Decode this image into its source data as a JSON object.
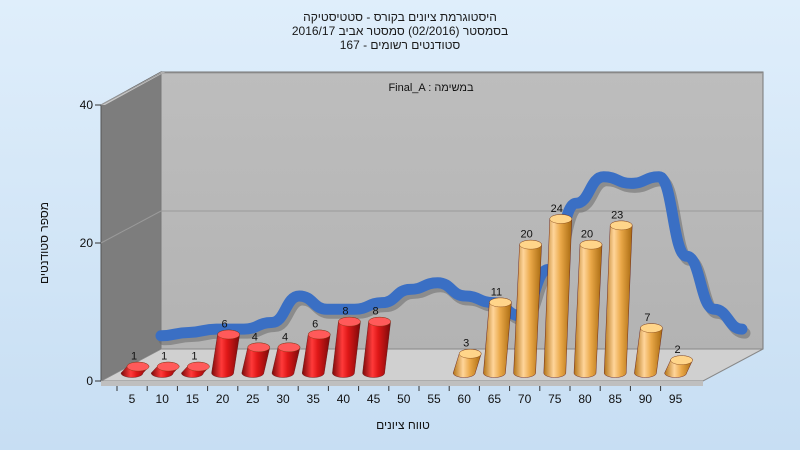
{
  "chart_data": {
    "type": "bar",
    "title_lines": [
      "היסטוגרמת ציונים בקורס - סטטיסטיקה",
      "בסמסטר  (02/2016)  סמסטר אביב 2016/17",
      "167 - סטודנטים רשומים"
    ],
    "annotation": "Final_A : במשימה",
    "xlabel": "טווח ציונים",
    "ylabel": "מספר סטודנטים",
    "ylim": [
      0,
      40
    ],
    "yticks": [
      0,
      20,
      40
    ],
    "categories": [
      "5",
      "10",
      "15",
      "20",
      "25",
      "30",
      "35",
      "40",
      "45",
      "50",
      "55",
      "60",
      "65",
      "70",
      "75",
      "80",
      "85",
      "90",
      "95"
    ],
    "values": [
      1,
      1,
      1,
      6,
      4,
      4,
      6,
      8,
      8,
      0,
      0,
      3,
      11,
      20,
      24,
      20,
      23,
      7,
      2
    ],
    "data_labels": [
      "1",
      "1",
      "1",
      "6",
      "4",
      "4",
      "6",
      "8",
      "8",
      "",
      "",
      "3",
      "11",
      "20",
      "24",
      "20",
      "23",
      "7",
      "2"
    ],
    "bar_colors": [
      "#d81b1b",
      "#d81b1b",
      "#d81b1b",
      "#d81b1b",
      "#d81b1b",
      "#d81b1b",
      "#d81b1b",
      "#d81b1b",
      "#d81b1b",
      "",
      "",
      "#e8a64a",
      "#e8a64a",
      "#e8a64a",
      "#e8a64a",
      "#e8a64a",
      "#e8a64a",
      "#e8a64a",
      "#e8a64a"
    ],
    "curve_values": [
      2,
      2.5,
      3,
      3,
      4,
      8,
      6,
      6,
      7,
      9,
      10,
      8,
      7,
      5,
      12,
      22,
      26,
      25,
      26,
      14,
      6,
      3
    ],
    "curve_colors": {
      "main": "#3a6fc4",
      "shadow": "#6a6a6a"
    },
    "grid": true,
    "legend": "none"
  }
}
